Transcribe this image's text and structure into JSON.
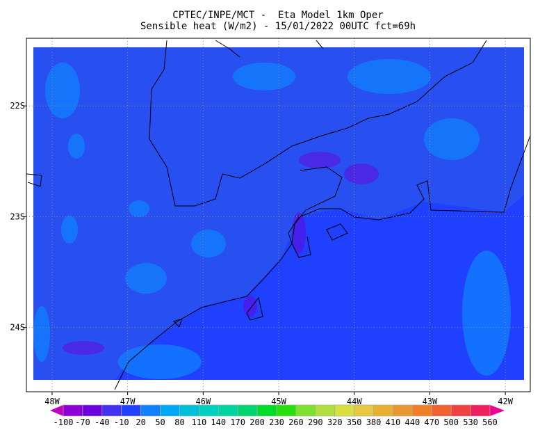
{
  "header": {
    "line1": "CPTEC/INPE/MCT -  Eta Model 1km Oper",
    "line2": "Sensible heat (W/m2) - 15/01/2022 00UTC fct=69h"
  },
  "map": {
    "projection": "lat-lon",
    "lon_range": [
      -48.34,
      -41.67
    ],
    "lat_range": [
      -24.58,
      -21.39
    ],
    "lon_ticks": [
      {
        "value": -48,
        "label": "48W"
      },
      {
        "value": -47,
        "label": "47W"
      },
      {
        "value": -46,
        "label": "46W"
      },
      {
        "value": -45,
        "label": "45W"
      },
      {
        "value": -44,
        "label": "44W"
      },
      {
        "value": -43,
        "label": "43W"
      },
      {
        "value": -42,
        "label": "42W"
      }
    ],
    "lat_ticks": [
      {
        "value": -22,
        "label": "22S"
      },
      {
        "value": -23,
        "label": "23S"
      },
      {
        "value": -24,
        "label": "24S"
      }
    ],
    "grid": "dotted",
    "field_colors": {
      "ocean_dominant": "#2040ff",
      "land_dominant": "#2850f0",
      "warm_patches": "#1080ff",
      "cool_patches": "#6a00dc"
    },
    "coastline_color": "#000000"
  },
  "colorbar": {
    "labels": [
      "-100",
      "-70",
      "-40",
      "-10",
      "20",
      "50",
      "80",
      "110",
      "140",
      "170",
      "200",
      "230",
      "260",
      "290",
      "320",
      "350",
      "380",
      "410",
      "440",
      "470",
      "500",
      "530",
      "560"
    ],
    "under_color": "#c000c0",
    "over_color": "#f00090",
    "colors": [
      "#8c00d4",
      "#6a00dc",
      "#4430f0",
      "#2040ff",
      "#1080ff",
      "#00a8f8",
      "#00c0d8",
      "#00d0c0",
      "#00d4a0",
      "#00d470",
      "#00dc28",
      "#28e010",
      "#80e030",
      "#b0e040",
      "#d8e040",
      "#e8c840",
      "#e8b030",
      "#e89830",
      "#f08028",
      "#f06030",
      "#f04040",
      "#f02060"
    ]
  }
}
